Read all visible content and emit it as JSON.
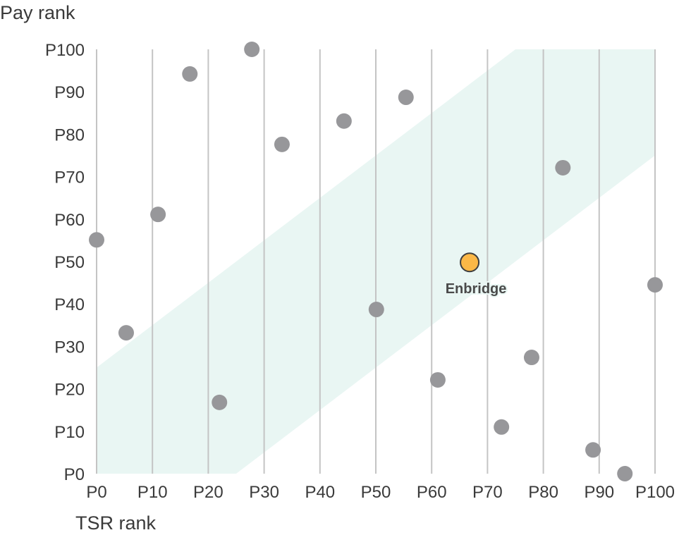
{
  "chart_data": {
    "type": "scatter",
    "title": "",
    "xlabel": "TSR rank",
    "ylabel": "Pay rank",
    "xlim": [
      0,
      100
    ],
    "ylim": [
      0,
      100
    ],
    "x_ticks": [
      "P0",
      "P10",
      "P20",
      "P30",
      "P40",
      "P50",
      "P60",
      "P70",
      "P80",
      "P90",
      "P100"
    ],
    "y_ticks": [
      "P0",
      "P10",
      "P20",
      "P30",
      "P40",
      "P50",
      "P60",
      "P70",
      "P80",
      "P90",
      "P100"
    ],
    "grid": "vertical",
    "alignment_band": {
      "offset": 25,
      "description_upper": "y = x + 25",
      "description_lower": "y = x - 25"
    },
    "colors": {
      "band": "#e9f6f3",
      "peer": "#97979a",
      "highlight": "#fbb847",
      "highlight_stroke": "#3f3f3f",
      "grid": "#c4c4c4"
    },
    "points": [
      {
        "x": 0,
        "y": 55.1
      },
      {
        "x": 5.3,
        "y": 33.2
      },
      {
        "x": 11.0,
        "y": 61.1
      },
      {
        "x": 16.7,
        "y": 94.2
      },
      {
        "x": 22.0,
        "y": 16.8
      },
      {
        "x": 27.8,
        "y": 100
      },
      {
        "x": 33.2,
        "y": 77.6
      },
      {
        "x": 44.3,
        "y": 83.1
      },
      {
        "x": 50.1,
        "y": 38.7
      },
      {
        "x": 55.4,
        "y": 88.7
      },
      {
        "x": 61.1,
        "y": 22.1
      },
      {
        "x": 72.5,
        "y": 11.0
      },
      {
        "x": 77.9,
        "y": 27.4
      },
      {
        "x": 83.5,
        "y": 72.1
      },
      {
        "x": 88.9,
        "y": 5.6
      },
      {
        "x": 94.6,
        "y": 0
      },
      {
        "x": 100,
        "y": 44.5
      }
    ],
    "highlight": {
      "name": "Enbridge",
      "x": 66.8,
      "y": 49.8
    }
  }
}
